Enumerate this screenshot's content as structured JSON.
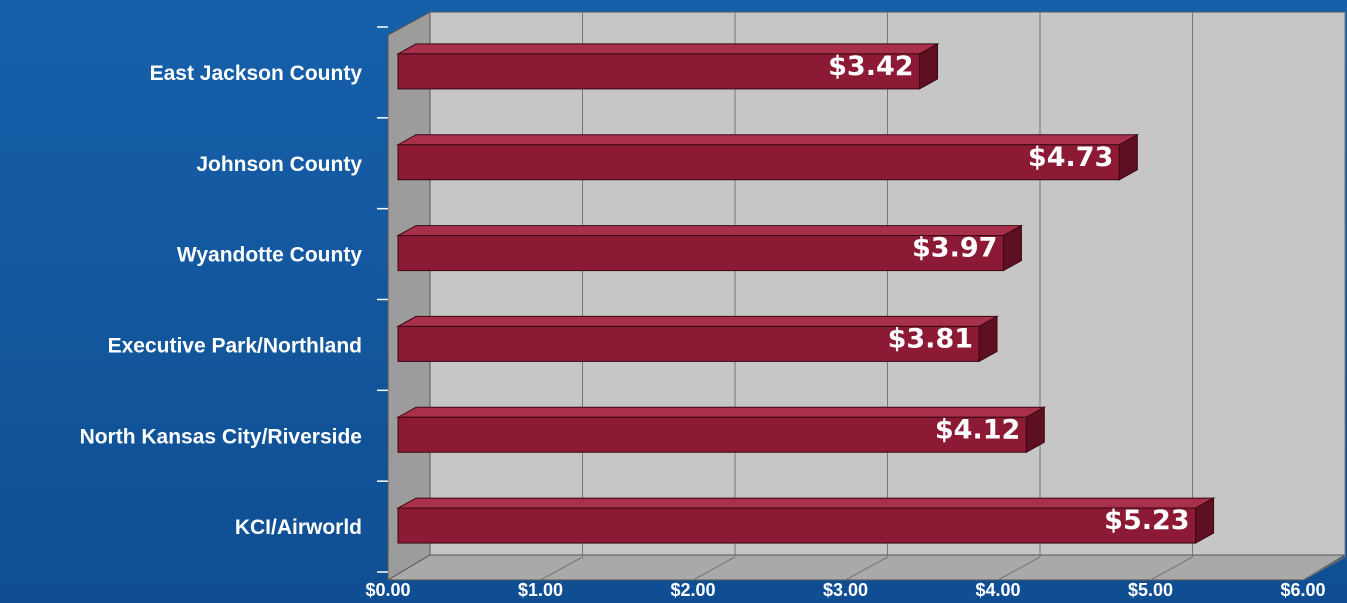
{
  "chart_data": {
    "type": "bar",
    "orientation": "horizontal",
    "categories": [
      "East Jackson County",
      "Johnson County",
      "Wyandotte County",
      "Executive Park/Northland",
      "North Kansas City/Riverside",
      "KCI/Airworld"
    ],
    "values": [
      3.42,
      4.73,
      3.97,
      3.81,
      4.12,
      5.23
    ],
    "value_labels": [
      "$3.42",
      "$4.73",
      "$3.97",
      "$3.81",
      "$4.12",
      "$5.23"
    ],
    "color": "#8c1a35",
    "xlim": [
      0,
      6
    ],
    "xticks": [
      {
        "value": 0,
        "label": "$0.00"
      },
      {
        "value": 1,
        "label": "$1.00"
      },
      {
        "value": 2,
        "label": "$2.00"
      },
      {
        "value": 3,
        "label": "$3.00"
      },
      {
        "value": 4,
        "label": "$4.00"
      },
      {
        "value": 5,
        "label": "$5.00"
      },
      {
        "value": 6,
        "label": "$6.00"
      }
    ],
    "grid": true
  }
}
